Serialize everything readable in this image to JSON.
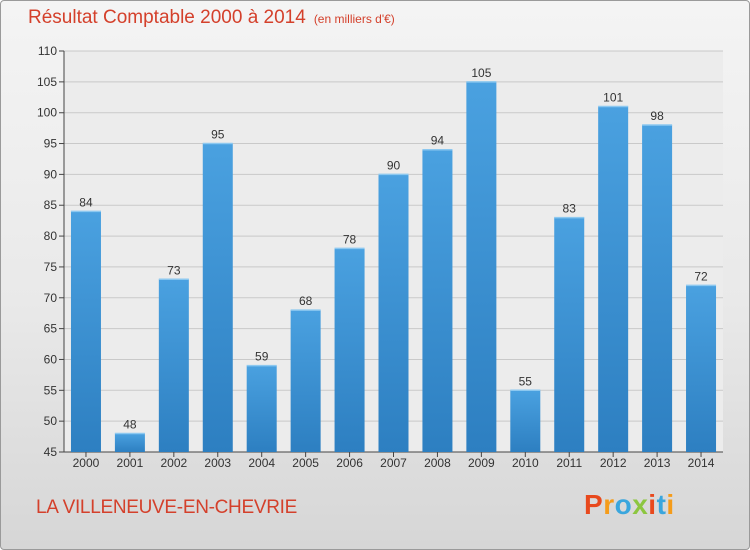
{
  "header": {
    "title": "Résultat Comptable 2000 à 2014",
    "subtitle": "(en milliers d'€)"
  },
  "footer": {
    "commune": "LA VILLENEUVE-EN-CHEVRIE",
    "logo_text": "Proxiti",
    "logo_colors": [
      "#e8491d",
      "#f59c1a",
      "#3aa6dd",
      "#8cc63f",
      "#e8491d",
      "#3aa6dd",
      "#f59c1a"
    ]
  },
  "chart_data": {
    "type": "bar",
    "title": "Résultat Comptable 2000 à 2014",
    "subtitle": "(en milliers d'€)",
    "categories": [
      "2000",
      "2001",
      "2002",
      "2003",
      "2004",
      "2005",
      "2006",
      "2007",
      "2008",
      "2009",
      "2010",
      "2011",
      "2012",
      "2013",
      "2014"
    ],
    "values": [
      84,
      48,
      73,
      95,
      59,
      68,
      78,
      90,
      94,
      105,
      55,
      83,
      101,
      98,
      72
    ],
    "ylim": [
      45,
      110
    ],
    "yticks": [
      45,
      50,
      55,
      60,
      65,
      70,
      75,
      80,
      85,
      90,
      95,
      100,
      105,
      110
    ],
    "grid": true,
    "bar_color": "#4aa1e0",
    "bar_color_dark": "#2d7fc1"
  }
}
